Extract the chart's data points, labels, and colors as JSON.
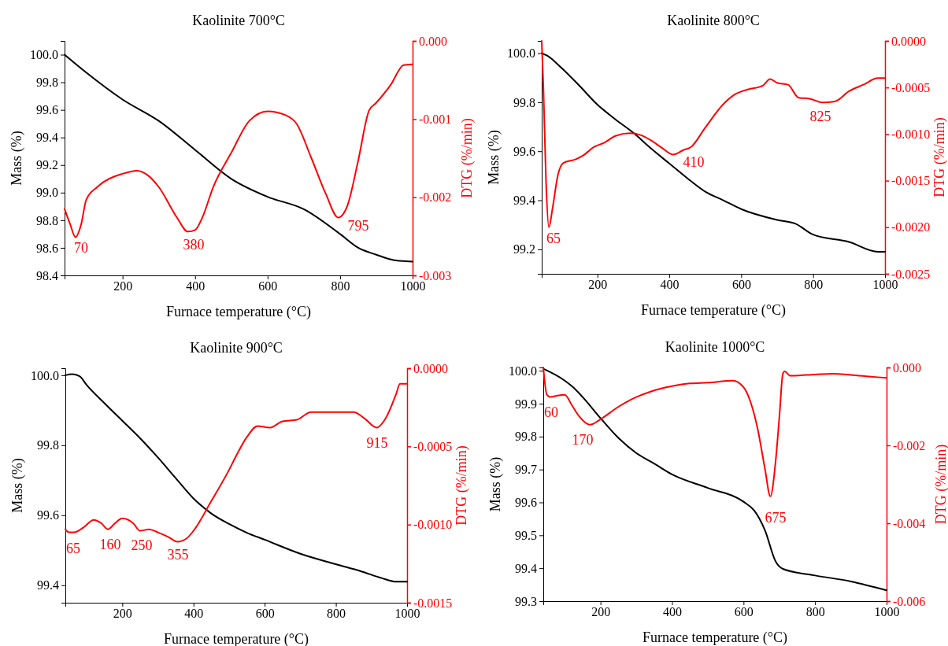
{
  "chart_data": [
    {
      "type": "line",
      "title": "Kaolinite 700°C",
      "xlabel": "Furnace temperature (°C)",
      "ylabel": "Mass (%)",
      "y2label": "DTG (%/min)",
      "xlim": [
        40,
        1000
      ],
      "xticks": [
        200,
        400,
        600,
        800,
        1000
      ],
      "ylim": [
        98.4,
        100.1
      ],
      "yticks": [
        {
          "value": 98.4,
          "label": "98.4"
        },
        {
          "value": 98.6,
          "label": "98.6"
        },
        {
          "value": 98.8,
          "label": "98.8"
        },
        {
          "value": 99,
          "label": "99.0"
        },
        {
          "value": 99.2,
          "label": "99.2"
        },
        {
          "value": 99.4,
          "label": "99.4"
        },
        {
          "value": 99.6,
          "label": "99.6"
        },
        {
          "value": 99.8,
          "label": "99.8"
        },
        {
          "value": 100,
          "label": "100.0"
        }
      ],
      "y2lim": [
        -0.003,
        0
      ],
      "y2ticks": [
        {
          "value": 0,
          "label": "0.000"
        },
        {
          "value": -0.001,
          "label": "-0.001"
        },
        {
          "value": -0.002,
          "label": "-0.002"
        },
        {
          "value": -0.003,
          "label": "-0.003"
        }
      ],
      "grid": false,
      "series": [
        {
          "color": "#000000",
          "x": [
            40,
            100,
            200,
            300,
            400,
            500,
            600,
            700,
            800,
            850,
            900,
            950,
            1000
          ],
          "values": [
            100.0,
            99.87,
            99.675,
            99.52,
            99.31,
            99.1,
            98.97,
            98.88,
            98.7,
            98.6,
            98.55,
            98.51,
            98.5
          ]
        },
        {
          "color": "#ff0000",
          "axis": "y2",
          "x": [
            40,
            55,
            70,
            85,
            100,
            130,
            200,
            240,
            270,
            300,
            350,
            380,
            400,
            420,
            450,
            500,
            550,
            600,
            650,
            680,
            720,
            760,
            795,
            820,
            850,
            880,
            900,
            940,
            975,
            1000
          ],
          "values": [
            -0.00215,
            -0.00234,
            -0.00251,
            -0.00236,
            -0.00203,
            -0.00187,
            -0.0017,
            -0.00166,
            -0.00172,
            -0.00187,
            -0.00226,
            -0.00244,
            -0.00242,
            -0.00226,
            -0.00187,
            -0.00143,
            -0.00102,
            -0.0009,
            -0.00095,
            -0.00106,
            -0.00149,
            -0.00195,
            -0.00226,
            -0.00211,
            -0.00153,
            -0.00089,
            -0.00079,
            -0.00056,
            -0.00031,
            -0.0003
          ]
        }
      ],
      "annotations": [
        "70",
        "380",
        "795"
      ]
    },
    {
      "type": "line",
      "title": "Kaolinite 800°C",
      "xlabel": "Furnace temperature (°C)",
      "ylabel": "Mass (%)",
      "y2label": "DTG (%/min)",
      "xlim": [
        45,
        1000
      ],
      "xticks": [
        200,
        400,
        600,
        800,
        1000
      ],
      "ylim": [
        99.1,
        100.05
      ],
      "yticks": [
        {
          "value": 99.2,
          "label": "99.2"
        },
        {
          "value": 99.4,
          "label": "99.4"
        },
        {
          "value": 99.6,
          "label": "99.6"
        },
        {
          "value": 99.8,
          "label": "99.8"
        },
        {
          "value": 100,
          "label": "100.0"
        }
      ],
      "y2lim": [
        -0.0025,
        0
      ],
      "y2ticks": [
        {
          "value": 0,
          "label": "0.0000"
        },
        {
          "value": -0.0005,
          "label": "-0.0005"
        },
        {
          "value": -0.001,
          "label": "-0.0010"
        },
        {
          "value": -0.0015,
          "label": "-0.0015"
        },
        {
          "value": -0.002,
          "label": "-0.0020"
        },
        {
          "value": -0.0025,
          "label": "-0.0025"
        }
      ],
      "grid": false,
      "series": [
        {
          "color": "#000000",
          "x": [
            45,
            60,
            100,
            150,
            200,
            250,
            300,
            350,
            400,
            450,
            500,
            550,
            600,
            700,
            750,
            800,
            900,
            980,
            1000
          ],
          "values": [
            100.0,
            99.99,
            99.94,
            99.867,
            99.79,
            99.73,
            99.675,
            99.61,
            99.55,
            99.49,
            99.435,
            99.4,
            99.364,
            99.32,
            99.305,
            99.26,
            99.23,
            99.19,
            99.19
          ]
        },
        {
          "color": "#ff0000",
          "axis": "y2",
          "x": [
            45,
            50,
            57,
            65,
            75,
            90,
            105,
            140,
            160,
            190,
            220,
            250,
            290,
            320,
            350,
            380,
            410,
            440,
            460,
            500,
            550,
            580,
            620,
            660,
            680,
            700,
            730,
            760,
            790,
            825,
            860,
            900,
            940,
            980,
            1000
          ],
          "values": [
            0,
            -0.00054,
            -0.00151,
            -0.002,
            -0.0018,
            -0.00144,
            -0.00131,
            -0.00127,
            -0.00123,
            -0.00114,
            -0.00109,
            -0.00102,
            -0.00099,
            -0.00101,
            -0.00107,
            -0.00115,
            -0.00122,
            -0.00117,
            -0.00114,
            -0.00093,
            -0.00068,
            -0.00058,
            -0.00052,
            -0.00048,
            -0.00041,
            -0.00045,
            -0.00047,
            -0.00061,
            -0.00062,
            -0.00066,
            -0.00065,
            -0.00054,
            -0.00047,
            -0.0004,
            -0.0004
          ]
        }
      ],
      "annotations": [
        "65",
        "410",
        "825"
      ]
    },
    {
      "type": "line",
      "title": "Kaolinite 900°C",
      "xlabel": "Furnace temperature (°C)",
      "ylabel": "Mass (%)",
      "y2label": "DTG (%/min)",
      "xlim": [
        40,
        1000
      ],
      "xticks": [
        200,
        400,
        600,
        800,
        1000
      ],
      "ylim": [
        99.35,
        100.02
      ],
      "yticks": [
        {
          "value": 99.4,
          "label": "99.4"
        },
        {
          "value": 99.6,
          "label": "99.6"
        },
        {
          "value": 99.8,
          "label": "99.8"
        },
        {
          "value": 100,
          "label": "100.0"
        }
      ],
      "y2lim": [
        -0.0015,
        0
      ],
      "y2ticks": [
        {
          "value": 0,
          "label": "0.0000"
        },
        {
          "value": -0.0005,
          "label": "-0.0005"
        },
        {
          "value": -0.001,
          "label": "-0.0010"
        },
        {
          "value": -0.0015,
          "label": "-0.0015"
        }
      ],
      "grid": false,
      "series": [
        {
          "color": "#000000",
          "x": [
            40,
            60,
            80,
            100,
            150,
            200,
            250,
            300,
            350,
            400,
            450,
            500,
            550,
            600,
            700,
            800,
            870,
            930,
            970,
            1000
          ],
          "values": [
            100.0,
            100.003,
            99.997,
            99.972,
            99.92,
            99.87,
            99.82,
            99.765,
            99.706,
            99.648,
            99.605,
            99.575,
            99.55,
            99.53,
            99.49,
            99.46,
            99.44,
            99.42,
            99.41,
            99.41
          ]
        },
        {
          "color": "#ff0000",
          "axis": "y2",
          "x": [
            40,
            50,
            65,
            90,
            120,
            140,
            160,
            180,
            200,
            230,
            250,
            275,
            300,
            330,
            355,
            380,
            400,
            450,
            500,
            520,
            550,
            580,
            615,
            650,
            690,
            730,
            800,
            850,
            880,
            915,
            940,
            970,
            980,
            1000
          ],
          "values": [
            -0.00103,
            -0.00105,
            -0.00105,
            -0.00102,
            -0.00097,
            -0.00099,
            -0.00103,
            -0.00099,
            -0.00096,
            -0.00099,
            -0.00104,
            -0.00103,
            -0.00105,
            -0.00108,
            -0.00111,
            -0.00109,
            -0.00104,
            -0.00085,
            -0.00065,
            -0.00056,
            -0.00044,
            -0.00037,
            -0.00038,
            -0.00034,
            -0.00033,
            -0.00028,
            -0.00028,
            -0.00028,
            -0.00032,
            -0.00038,
            -0.00032,
            -0.00016,
            -0.0001,
            -0.0001
          ]
        }
      ],
      "annotations": [
        "65",
        "160",
        "250",
        "355",
        "915"
      ]
    },
    {
      "type": "line",
      "title": "Kaolinite 1000°C",
      "xlabel": "Furnace temperature (°C)",
      "ylabel": "Mass (%)",
      "y2label": "DTG (%/min)",
      "xlim": [
        40,
        1000
      ],
      "xticks": [
        200,
        400,
        600,
        800,
        1000
      ],
      "ylim": [
        99.3,
        100.01
      ],
      "yticks": [
        {
          "value": 99.3,
          "label": "99.3"
        },
        {
          "value": 99.4,
          "label": "99.4"
        },
        {
          "value": 99.5,
          "label": "99.5"
        },
        {
          "value": 99.6,
          "label": "99.6"
        },
        {
          "value": 99.7,
          "label": "99.7"
        },
        {
          "value": 99.8,
          "label": "99.8"
        },
        {
          "value": 99.9,
          "label": "99.9"
        },
        {
          "value": 100,
          "label": "100.0"
        }
      ],
      "y2lim": [
        -0.006,
        0
      ],
      "y2ticks": [
        {
          "value": 0,
          "label": "0.000"
        },
        {
          "value": -0.002,
          "label": "-0.002"
        },
        {
          "value": -0.004,
          "label": "-0.004"
        },
        {
          "value": -0.006,
          "label": "-0.006"
        }
      ],
      "grid": false,
      "series": [
        {
          "color": "#000000",
          "x": [
            40,
            100,
            120,
            150,
            200,
            250,
            300,
            350,
            400,
            500,
            600,
            630,
            660,
            690,
            710,
            800,
            900,
            1000
          ],
          "values": [
            100.006,
            99.97,
            99.953,
            99.92,
            99.856,
            99.796,
            99.75,
            99.718,
            99.685,
            99.644,
            99.602,
            99.575,
            99.515,
            99.42,
            99.398,
            99.378,
            99.36,
            99.333
          ]
        },
        {
          "color": "#ff0000",
          "axis": "y2",
          "x": [
            40,
            50,
            60,
            80,
            100,
            120,
            140,
            170,
            200,
            250,
            300,
            340,
            400,
            450,
            500,
            570,
            600,
            620,
            640,
            660,
            675,
            690,
            700,
            710,
            715,
            730,
            800,
            850,
            900,
            950,
            1000
          ],
          "values": [
            0,
            -0.0007,
            -0.00076,
            -0.00072,
            -0.0007,
            -0.00097,
            -0.00125,
            -0.00147,
            -0.00133,
            -0.00101,
            -0.00076,
            -0.00062,
            -0.00048,
            -0.00041,
            -0.00039,
            -0.00034,
            -0.00051,
            -0.0009,
            -0.0016,
            -0.00261,
            -0.00331,
            -0.00238,
            -0.00129,
            -0.00016,
            -0.0001,
            -0.00021,
            -0.00018,
            -0.00016,
            -0.00019,
            -0.00023,
            -0.00027
          ]
        }
      ],
      "annotations": [
        "60",
        "170",
        "675"
      ]
    }
  ]
}
